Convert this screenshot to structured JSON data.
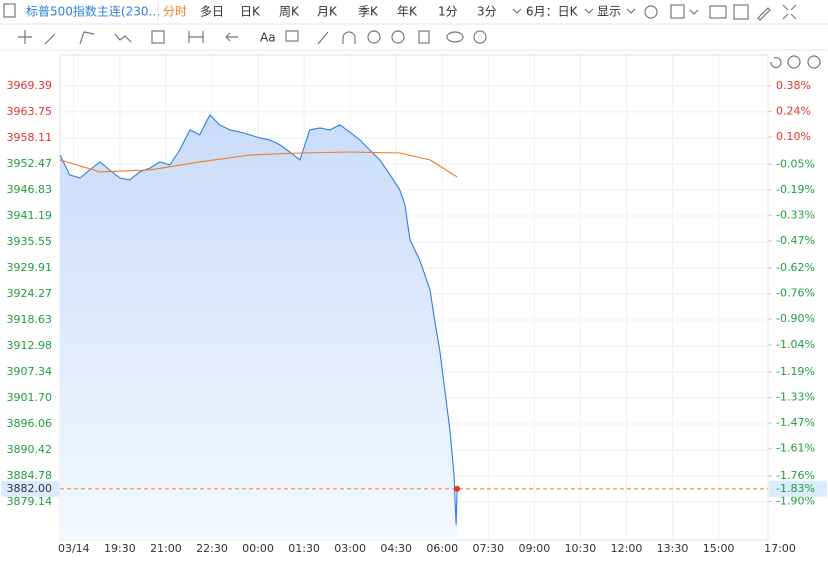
{
  "toolbar": {
    "symbol": "标普500指数主连(230…",
    "periods": [
      "分时",
      "多日",
      "日K",
      "周K",
      "月K",
      "季K",
      "年K",
      "1分",
      "3分"
    ],
    "period_select": "6月：日K",
    "display": "显示"
  },
  "drawing_toolbar": {
    "text_tool": "Aa"
  },
  "chart_data": {
    "type": "line",
    "x": [
      -27,
      -8,
      12,
      31,
      51,
      70,
      90,
      109,
      129,
      149,
      168,
      188,
      207,
      227,
      246,
      266,
      285,
      305,
      324,
      344,
      363,
      383,
      403,
      422,
      442,
      461,
      481,
      500,
      520,
      539,
      559,
      578,
      598,
      618,
      637,
      647,
      657,
      676,
      696,
      705,
      715,
      725,
      735,
      743,
      747,
      749
    ],
    "series": [
      {
        "color": "#2f7fe0",
        "values": [
          3954.42,
          3950.09,
          3949.43,
          3951.17,
          3952.91,
          3951.17,
          3949.43,
          3949.0,
          3950.74,
          3951.6,
          3952.91,
          3952.26,
          3955.51,
          3959.85,
          3958.76,
          3963.1,
          3960.93,
          3959.85,
          3959.41,
          3958.76,
          3958.11,
          3957.68,
          3956.59,
          3955.07,
          3953.34,
          3959.85,
          3960.28,
          3959.85,
          3960.93,
          3959.41,
          3957.68,
          3955.51,
          3953.34,
          3950.09,
          3946.83,
          3943.58,
          3935.99,
          3931.65,
          3925.14,
          3918.63,
          3912.12,
          3903.45,
          3894.77,
          3885.0,
          3874.17,
          3882.0
        ]
      },
      {
        "color": "#f07c22",
        "x": [
          -27,
          51,
          149,
          246,
          344,
          442,
          539,
          637,
          696,
          749
        ],
        "values": [
          3953.34,
          3950.74,
          3951.17,
          3952.91,
          3954.42,
          3954.85,
          3955.07,
          3954.85,
          3953.34,
          3949.65
        ]
      }
    ],
    "xlim": [
      -27,
      1380
    ],
    "xticks": [
      {
        "value": 0,
        "label": "03/14"
      },
      {
        "value": 90,
        "label": "19:30"
      },
      {
        "value": 180,
        "label": "21:00"
      },
      {
        "value": 270,
        "label": "22:30"
      },
      {
        "value": 360,
        "label": "00:00"
      },
      {
        "value": 450,
        "label": "01:30"
      },
      {
        "value": 540,
        "label": "03:00"
      },
      {
        "value": 630,
        "label": "04:30"
      },
      {
        "value": 720,
        "label": "06:00"
      },
      {
        "value": 810,
        "label": "07:30"
      },
      {
        "value": 900,
        "label": "09:00"
      },
      {
        "value": 990,
        "label": "10:30"
      },
      {
        "value": 1080,
        "label": "12:00"
      },
      {
        "value": 1170,
        "label": "13:30"
      },
      {
        "value": 1260,
        "label": "15:00"
      },
      {
        "value": 1380,
        "label": "17:00"
      }
    ],
    "ylim": [
      3870.9,
      3976.1
    ],
    "yticks": [
      3969.39,
      3963.75,
      3958.11,
      3952.47,
      3946.83,
      3941.19,
      3935.55,
      3929.91,
      3924.27,
      3918.63,
      3912.98,
      3907.34,
      {
        "value": 3901.7,
        "label": "3901.70"
      },
      3896.06,
      3890.42,
      3884.78,
      3879.14
    ],
    "y2lim": [
      -2.111,
      0.5495
    ],
    "y2ticks": [
      {
        "value": 0.38,
        "label": "0.38%"
      },
      {
        "value": 0.24,
        "label": "0.24%"
      },
      {
        "value": 0.1,
        "label": "0.10%"
      },
      {
        "value": -0.05,
        "label": "-0.05%"
      },
      {
        "value": -0.19,
        "label": "-0.19%"
      },
      {
        "value": -0.33,
        "label": "-0.33%"
      },
      {
        "value": -0.47,
        "label": "-0.47%"
      },
      {
        "value": -0.62,
        "label": "-0.62%"
      },
      {
        "value": -0.76,
        "label": "-0.76%"
      },
      {
        "value": -0.9,
        "label": "-0.90%"
      },
      {
        "value": -1.04,
        "label": "-1.04%"
      },
      {
        "value": -1.19,
        "label": "-1.19%"
      },
      {
        "value": -1.33,
        "label": "-1.33%"
      },
      {
        "value": -1.47,
        "label": "-1.47%"
      },
      {
        "value": -1.61,
        "label": "-1.61%"
      },
      {
        "value": -1.76,
        "label": "-1.76%"
      },
      {
        "value": -1.9,
        "label": "-1.90%"
      }
    ],
    "last_price": {
      "value": 3882,
      "label": "3882.00"
    },
    "last_change": {
      "value": -1.83,
      "label": "-1.83%"
    },
    "up_color": "#e8322b",
    "down_color": "#1f9e3c",
    "grid": true
  }
}
